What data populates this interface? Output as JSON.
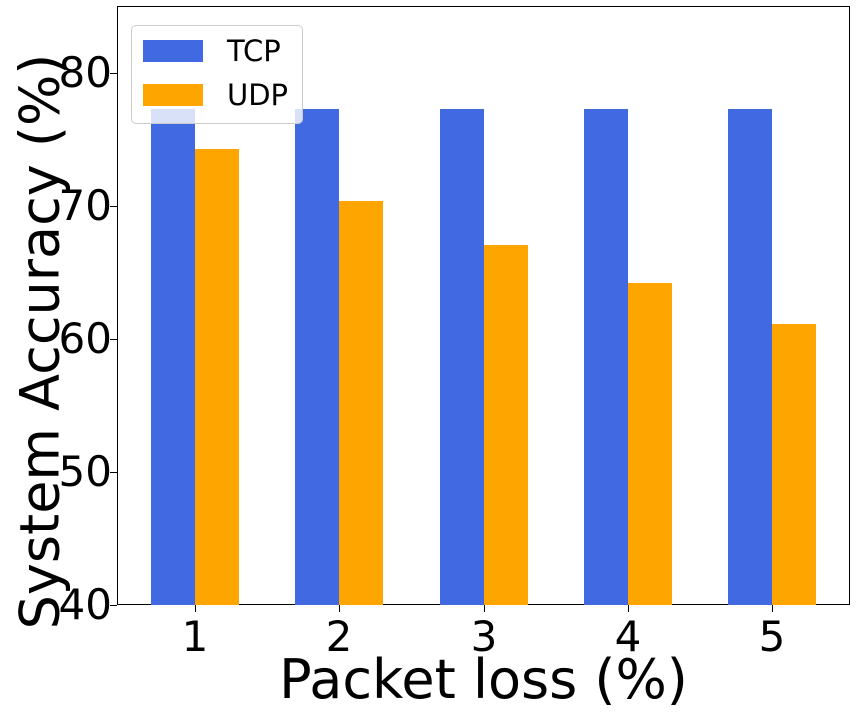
{
  "chart_data": {
    "type": "bar",
    "title": "",
    "xlabel": "Packet loss (%)",
    "ylabel": "System Accuracy (%)",
    "categories": [
      "1",
      "2",
      "3",
      "4",
      "5"
    ],
    "series": [
      {
        "name": "TCP",
        "color": "#4169E1",
        "values": [
          77.3,
          77.3,
          77.3,
          77.3,
          77.3
        ]
      },
      {
        "name": "UDP",
        "color": "#FFA500",
        "values": [
          74.3,
          70.4,
          67.1,
          64.2,
          61.1
        ]
      }
    ],
    "ylim": [
      40,
      85
    ],
    "yticks": [
      "40",
      "50",
      "60",
      "70",
      "80"
    ],
    "grid": false,
    "legend_position": "upper left"
  }
}
